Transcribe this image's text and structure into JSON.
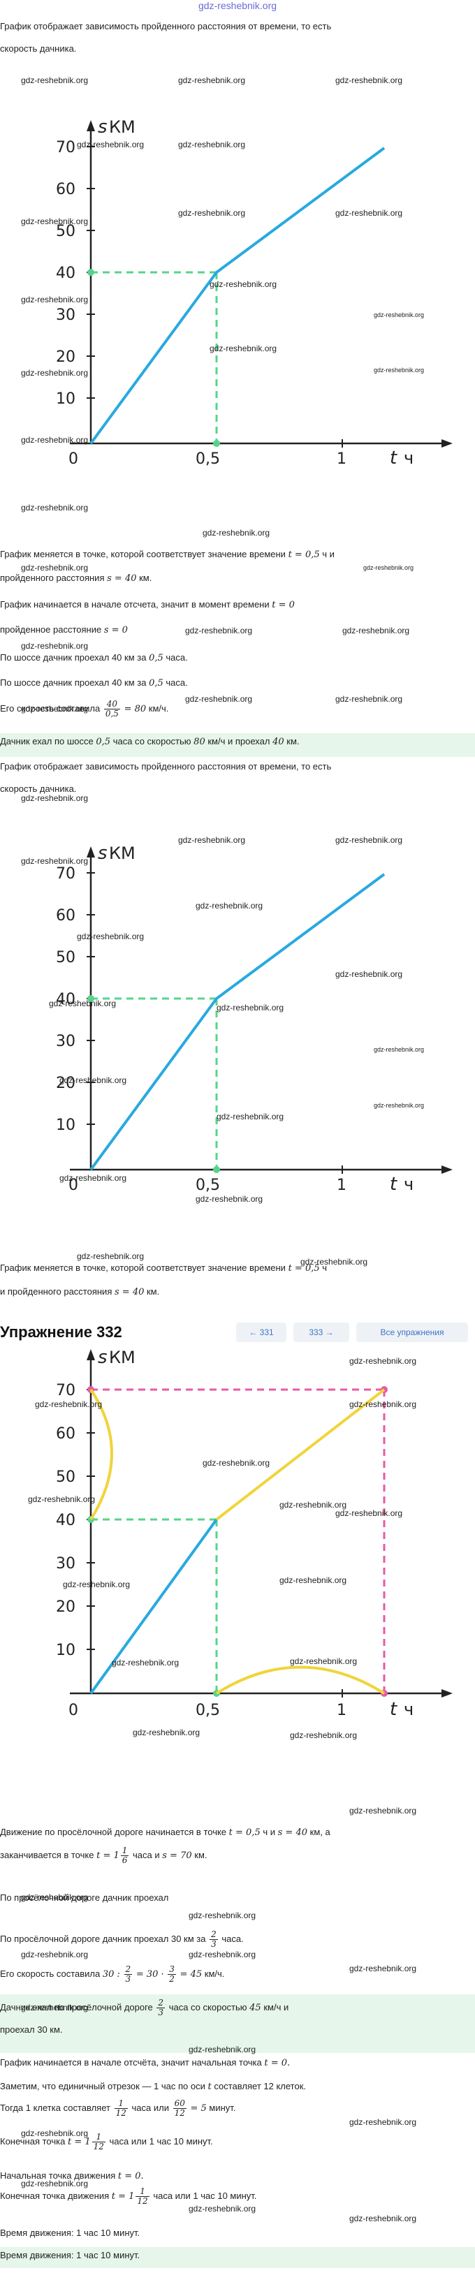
{
  "site": {
    "header": "gdz-reshebnik.org"
  },
  "watermark": "gdz-reshebnik.org",
  "units": {
    "km": "КМ",
    "h": "ч",
    "s": "s",
    "t": "t"
  },
  "graph": {
    "y_ticks": [
      "70",
      "60",
      "50",
      "40",
      "30",
      "20",
      "10"
    ],
    "x_ticks": [
      "0",
      "0,5",
      "1"
    ]
  },
  "section1": {
    "intro_1": "График отображает зависимость пройденного расстояния от времени, то есть",
    "intro_2": "скорость дачника.",
    "p1a": "График меняется в точке, которой соответствует значение времени",
    "p1b": "ч и",
    "p1c": "пройденного расстояния",
    "p1d": "км.",
    "p2a": "График начинается в начале отсчета, значит в момент времени",
    "p3a": "пройденное расстояние",
    "p4a": "По шоссе дачник проехал 40 км за",
    "p4b": "часа.",
    "p5a": "По шоссе дачник проехал 40 км за",
    "p5b": "часа.",
    "p6a": "Его скорость составила",
    "p6b": "км/ч.",
    "answer_a": "Дачник ехал по шоссе",
    "answer_b": "часа со скоростью",
    "answer_c": "км/ч и проехал",
    "answer_d": "км."
  },
  "section2": {
    "intro_1": "График отображает зависимость пройденного расстояния от времени, то есть",
    "intro_2": "скорость дачника.",
    "p1a": "График меняется в точке, которой соответствует значение времени",
    "p1b": "ч",
    "p1c": "и пройденного расстояния",
    "p1d": "км."
  },
  "nav": {
    "title": "Упражнение 332",
    "prev": "← 331",
    "next": "333 →",
    "all": "Все упражнения"
  },
  "section3": {
    "p1a": "Движение по просёлочной дороге начинается в точке",
    "p1b": "ч и",
    "p1c": "км, а",
    "p2a": "заканчивается в точке",
    "p2b": "часа и",
    "p2c": "км.",
    "p3": "По просёлочной дороге дачник проехал",
    "p4a": "По просёлочной дороге дачник проехал 30 км за",
    "p4b": "часа.",
    "p5a": "Его скорость составила",
    "p5b": "км/ч.",
    "answer_a": "Дачник ехал по просёлочной дороге",
    "answer_b": "часа со скоростью",
    "answer_c": "км/ч и",
    "answer_d": "проехал 30 км.",
    "q1a": "График начинается в начале отсчёта, значит начальная точка",
    "q2a": "Заметим, что единичный отрезок — 1 час по оси",
    "q2b": "составляет 12 клеток.",
    "q3a": "Тогда 1 клетка составляет",
    "q3b": "часа или",
    "q3c": "минут.",
    "q4a": "Конечная точка",
    "q4b": "часа или 1 час 10 минут.",
    "q5a": "Начальная точка движения",
    "q6a": "Конечная точка движения",
    "q6b": "часа или 1 час 10 минут.",
    "q7": "Время движения: 1 час 10 минут.",
    "answer2": "Время движения: 1 час 10 минут."
  },
  "math": {
    "t05": "t = 0,5",
    "s40": "s = 40",
    "t0": "t = 0",
    "s0": "s = 0",
    "v05": "0,5",
    "v80": "80",
    "v40": "40",
    "v30": "30",
    "v45": "45",
    "frac40": "40",
    "frac05": "0,5",
    "eq80": "= 80",
    "s70": "s = 70",
    "t1": "t = 1",
    "one": "1",
    "six": "6",
    "two": "2",
    "three": "3",
    "twelve": "12",
    "sixty": "60",
    "eq5": "= 5",
    "eq30a": "30 :",
    "eq30b": "= 30 ·",
    "eq45": "= 45",
    "t_var": "t",
    "tq0": "t = 0."
  }
}
